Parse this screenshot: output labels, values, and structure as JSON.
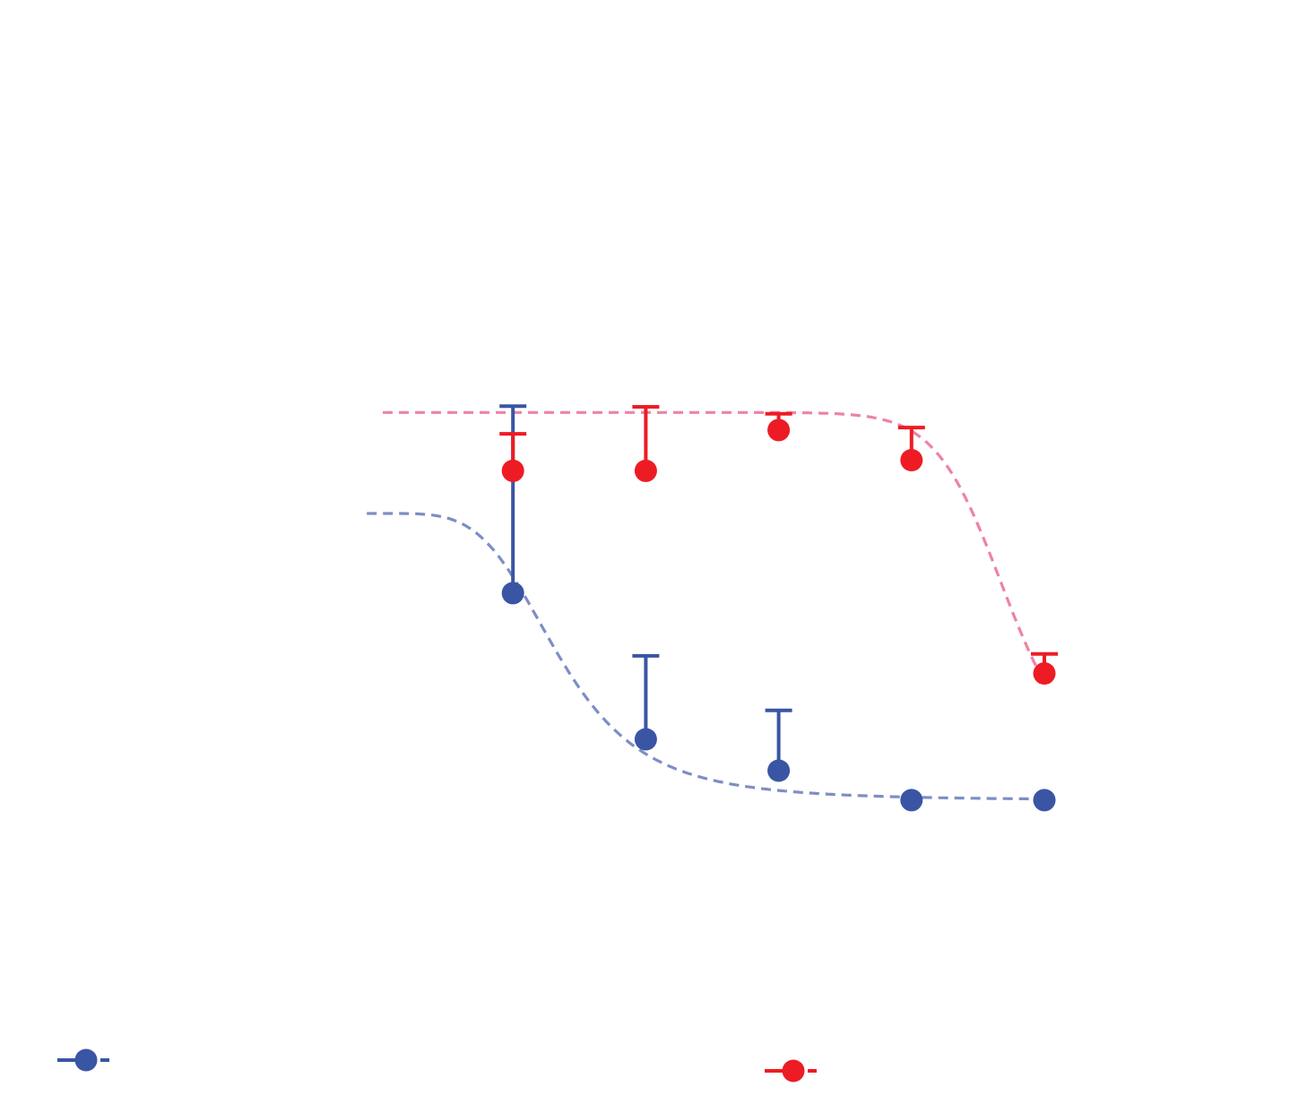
{
  "chart_data": {
    "type": "scatter",
    "title": "",
    "xlabel": "",
    "ylabel": "",
    "x": [
      1,
      2,
      3,
      4,
      5
    ],
    "xlim": [
      0,
      6
    ],
    "ylim": [
      0,
      100
    ],
    "grid": false,
    "legend": "bottom",
    "series": [
      {
        "color": "#3a55a4",
        "curve_color": "#7d8ec4",
        "values": [
          48.3,
          25.0,
          20.0,
          15.3,
          15.3
        ],
        "error_upper": [
          29.8,
          13.3,
          9.6,
          0,
          0
        ],
        "fit": {
          "top": 61.0,
          "bottom": 15.3,
          "x50": 1.35,
          "hill": 4.2,
          "from": -0.1
        }
      },
      {
        "color": "#ed1c24",
        "curve_color": "#ee82a6",
        "values": [
          67.8,
          67.8,
          74.3,
          69.5,
          35.5
        ],
        "error_upper": [
          5.9,
          10.2,
          2.6,
          5.2,
          3.1
        ],
        "fit": {
          "top": 77.1,
          "bottom": 20.0,
          "x50": 4.7,
          "hill": 18,
          "from": 0.02
        }
      }
    ]
  }
}
